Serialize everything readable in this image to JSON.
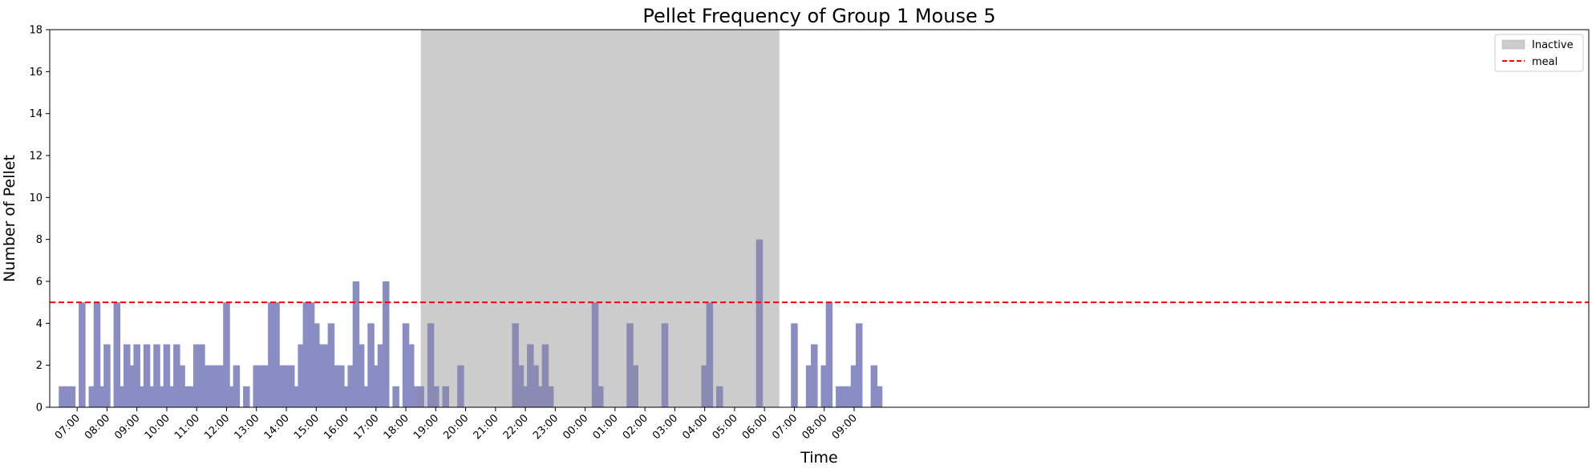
{
  "chart_data": {
    "type": "bar",
    "title": "Pellet Frequency of Group 1 Mouse 5",
    "xlabel": "Time",
    "ylabel": "Number of Pellet",
    "ylim": [
      0,
      18
    ],
    "yticks": [
      0,
      2,
      4,
      6,
      8,
      10,
      12,
      14,
      16,
      18
    ],
    "xlim": [
      "06:05",
      "09:35 (+2d)"
    ],
    "xticks": [
      {
        "time": "07:00",
        "label": "07:00"
      },
      {
        "time": "08:00",
        "label": "08:00"
      },
      {
        "time": "09:00",
        "label": "09:00"
      },
      {
        "time": "10:00",
        "label": "10:00"
      },
      {
        "time": "11:00",
        "label": "11:00"
      },
      {
        "time": "12:00",
        "label": "12:00"
      },
      {
        "time": "13:00",
        "label": "13:00"
      },
      {
        "time": "14:00",
        "label": "14:00"
      },
      {
        "time": "15:00",
        "label": "15:00"
      },
      {
        "time": "16:00",
        "label": "16:00"
      },
      {
        "time": "17:00",
        "label": "17:00"
      },
      {
        "time": "18:00",
        "label": "18:00"
      },
      {
        "time": "19:00",
        "label": "19:00"
      },
      {
        "time": "20:00",
        "label": "20:00"
      },
      {
        "time": "21:00",
        "label": "21:00"
      },
      {
        "time": "22:00",
        "label": "22:00"
      },
      {
        "time": "23:00",
        "label": "23:00"
      },
      {
        "time": "00:00 (+1d)",
        "label": "00:00"
      },
      {
        "time": "01:00 (+1d)",
        "label": "01:00"
      },
      {
        "time": "02:00 (+1d)",
        "label": "02:00"
      },
      {
        "time": "03:00 (+1d)",
        "label": "03:00"
      },
      {
        "time": "04:00 (+1d)",
        "label": "04:00"
      },
      {
        "time": "05:00 (+1d)",
        "label": "05:00"
      },
      {
        "time": "06:00 (+1d)",
        "label": "06:00"
      },
      {
        "time": "07:00 (+1d)",
        "label": "07:00"
      },
      {
        "time": "08:00 (+1d)",
        "label": "08:00"
      },
      {
        "time": "09:00 (+1d)",
        "label": "09:00"
      }
    ],
    "series": [
      {
        "x": [
          "06:30",
          "06:40",
          "06:50",
          "07:10",
          "07:30",
          "07:40",
          "07:50",
          "08:00",
          "08:20",
          "08:30",
          "08:40",
          "08:50",
          "09:00",
          "09:10",
          "09:20",
          "09:30",
          "09:40",
          "09:50",
          "10:00",
          "10:10",
          "10:20",
          "10:30",
          "10:40",
          "10:50",
          "11:00",
          "11:10",
          "11:20",
          "11:30",
          "11:40",
          "11:50",
          "12:00",
          "12:10",
          "12:20",
          "12:40",
          "13:00",
          "13:10",
          "13:20",
          "13:30",
          "13:40",
          "13:50",
          "14:00",
          "14:10",
          "14:20",
          "14:30",
          "14:40",
          "14:50",
          "15:00",
          "15:10",
          "15:20",
          "15:30",
          "15:40",
          "15:50",
          "16:00",
          "16:10",
          "16:20",
          "16:30",
          "16:40",
          "16:50",
          "17:00",
          "17:10",
          "17:20",
          "17:40",
          "18:00",
          "18:10",
          "18:20",
          "18:30",
          "18:50",
          "19:00",
          "19:20",
          "19:50",
          "21:40",
          "21:50",
          "22:00",
          "22:10",
          "22:20",
          "22:30",
          "22:40",
          "22:50",
          "00:20 (+1d)",
          "00:30 (+1d)",
          "01:30 (+1d)",
          "01:40 (+1d)",
          "02:40 (+1d)",
          "04:00 (+1d)",
          "04:10 (+1d)",
          "04:30 (+1d)",
          "05:50 (+1d)",
          "07:00 (+1d)",
          "07:30 (+1d)",
          "07:40 (+1d)",
          "07:60 (+1d)",
          "08:10 (+1d)",
          "08:30 (+1d)",
          "08:40 (+1d)",
          "08:50 (+1d)",
          "09:00 (+1d)",
          "09:10 (+1d)",
          "09:40 (+1d)",
          "09:50 (+1d)"
        ],
        "values": [
          1,
          1,
          1,
          5,
          1,
          5,
          1,
          3,
          5,
          1,
          3,
          2,
          3,
          1,
          3,
          1,
          3,
          1,
          3,
          1,
          3,
          2,
          1,
          1,
          3,
          3,
          2,
          2,
          2,
          2,
          5,
          1,
          2,
          1,
          2,
          2,
          2,
          5,
          5,
          2,
          2,
          2,
          1,
          3,
          5,
          5,
          4,
          3,
          3,
          4,
          2,
          2,
          1,
          2,
          6,
          3,
          1,
          4,
          2,
          3,
          6,
          1,
          4,
          3,
          1,
          1,
          4,
          1,
          1,
          2,
          4,
          2,
          1,
          3,
          2,
          1,
          3,
          1,
          5,
          1,
          4,
          2,
          4,
          2,
          5,
          1,
          8,
          4,
          2,
          3,
          2,
          5,
          1,
          1,
          1,
          2,
          4,
          2,
          1
        ]
      }
    ],
    "bar_colors": {
      "active": "#8a8cc4",
      "inactive": "#8a8bb4"
    },
    "inactive_period": {
      "start": "18:30",
      "end": "06:30 (+1d)",
      "color": "#cccccc"
    },
    "meal_threshold": {
      "value": 5,
      "color": "#ff0000",
      "style": "dashed"
    },
    "grid": false,
    "legend": {
      "position": "top-right",
      "entries": [
        {
          "label": "Inactive",
          "kind": "patch",
          "color": "#cccccc"
        },
        {
          "label": "meal",
          "kind": "dashed-line",
          "color": "#ff0000"
        }
      ]
    }
  }
}
